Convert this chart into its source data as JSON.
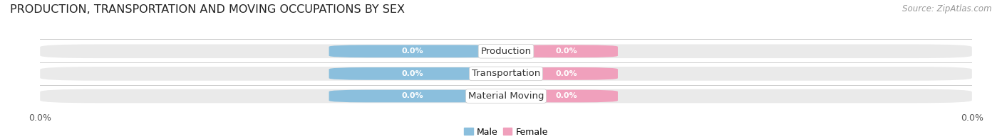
{
  "title": "PRODUCTION, TRANSPORTATION AND MOVING OCCUPATIONS BY SEX",
  "source": "Source: ZipAtlas.com",
  "categories": [
    "Production",
    "Transportation",
    "Material Moving"
  ],
  "male_values": [
    0.0,
    0.0,
    0.0
  ],
  "female_values": [
    0.0,
    0.0,
    0.0
  ],
  "male_color": "#8BBFDD",
  "female_color": "#F0A0BC",
  "male_label": "Male",
  "female_label": "Female",
  "bar_bg_color": "#EAEAEA",
  "bar_height": 0.62,
  "title_fontsize": 11.5,
  "source_fontsize": 8.5,
  "value_fontsize": 8,
  "category_fontsize": 9.5,
  "legend_fontsize": 9,
  "figsize": [
    14.06,
    1.96
  ],
  "dpi": 100
}
